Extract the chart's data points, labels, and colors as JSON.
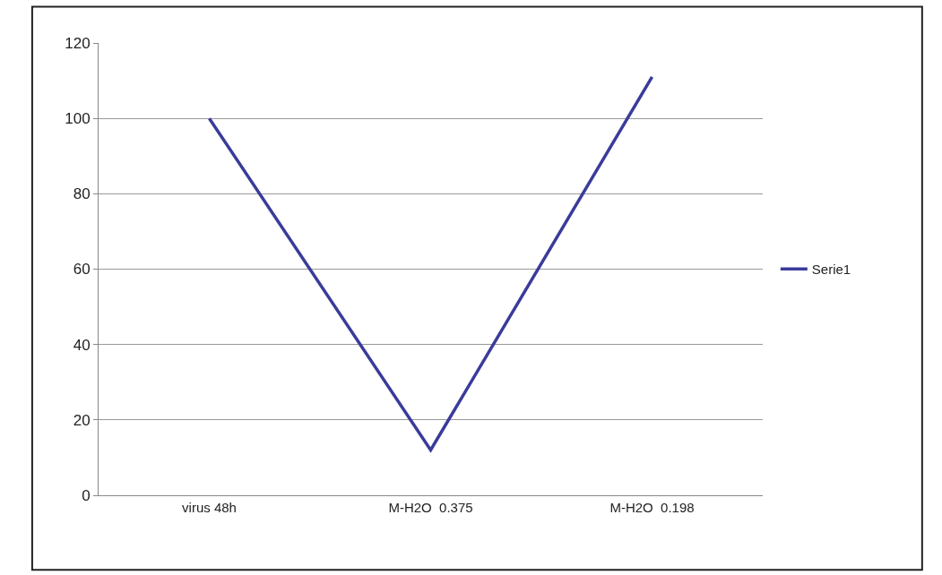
{
  "chart_data": {
    "type": "line",
    "categories": [
      "virus 48h",
      "M-H2O  0.375",
      "M-H2O  0.198"
    ],
    "series": [
      {
        "name": "Serie1",
        "color": "#3b3b9b",
        "values": [
          100,
          12,
          111
        ]
      }
    ],
    "ylim": [
      0,
      120
    ],
    "yticks": [
      0,
      20,
      40,
      60,
      80,
      100,
      120
    ],
    "grid": "y",
    "legend": "right",
    "marker": "none",
    "line_style": "solid"
  }
}
